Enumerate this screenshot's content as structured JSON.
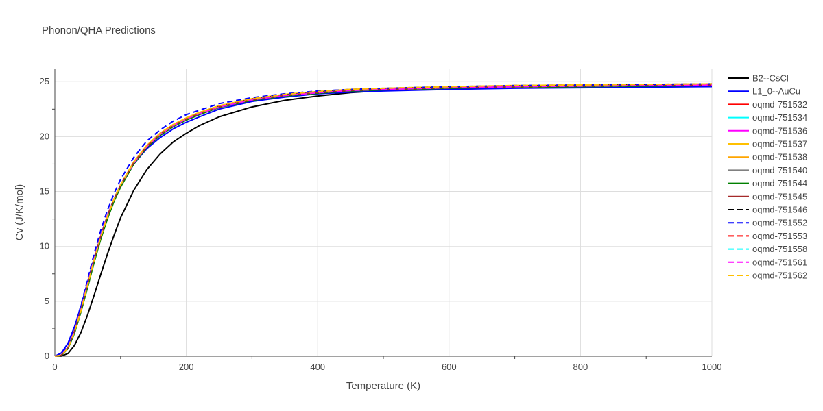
{
  "chart_data": {
    "type": "line",
    "title": "Phonon/QHA Predictions",
    "xlabel": "Temperature (K)",
    "ylabel": "Cv (J/K/mol)",
    "xlim": [
      0,
      1000
    ],
    "ylim": [
      0,
      26.2
    ],
    "x_ticks": [
      0,
      200,
      400,
      600,
      800,
      1000
    ],
    "y_ticks": [
      0,
      5,
      10,
      15,
      20,
      25
    ],
    "grid": true,
    "legend_position": "right",
    "x": [
      0,
      10,
      20,
      30,
      40,
      50,
      60,
      70,
      80,
      90,
      100,
      120,
      140,
      160,
      180,
      200,
      220,
      250,
      300,
      350,
      400,
      450,
      500,
      600,
      700,
      800,
      900,
      1000
    ],
    "series": [
      {
        "name": "B2--CsCl",
        "color": "#000000",
        "dash": "solid",
        "values": [
          0,
          0.02,
          0.25,
          1.0,
          2.2,
          3.8,
          5.6,
          7.5,
          9.3,
          11.0,
          12.6,
          15.1,
          17.0,
          18.4,
          19.5,
          20.3,
          21.0,
          21.8,
          22.7,
          23.3,
          23.7,
          24.0,
          24.2,
          24.4,
          24.55,
          24.6,
          24.65,
          24.7
        ]
      },
      {
        "name": "L1_0--AuCu",
        "color": "#0000ff",
        "dash": "solid",
        "values": [
          0,
          0.3,
          1.2,
          2.7,
          4.6,
          6.8,
          9.0,
          11.0,
          12.8,
          14.3,
          15.5,
          17.5,
          18.9,
          19.9,
          20.7,
          21.3,
          21.8,
          22.5,
          23.2,
          23.6,
          23.9,
          24.05,
          24.15,
          24.3,
          24.4,
          24.45,
          24.5,
          24.55
        ]
      },
      {
        "name": "oqmd-751532",
        "color": "#ff0000",
        "dash": "solid",
        "values": [
          0,
          0.1,
          0.8,
          2.3,
          4.3,
          6.6,
          8.9,
          11.0,
          12.8,
          14.3,
          15.6,
          17.6,
          19.1,
          20.2,
          21.0,
          21.6,
          22.1,
          22.7,
          23.35,
          23.75,
          24.0,
          24.2,
          24.3,
          24.45,
          24.55,
          24.6,
          24.65,
          24.7
        ]
      },
      {
        "name": "oqmd-751534",
        "color": "#00ffff",
        "dash": "solid",
        "values": [
          0,
          0.1,
          0.8,
          2.3,
          4.3,
          6.6,
          8.9,
          11.0,
          12.8,
          14.3,
          15.6,
          17.6,
          19.1,
          20.2,
          21.0,
          21.6,
          22.1,
          22.7,
          23.35,
          23.75,
          24.0,
          24.2,
          24.3,
          24.45,
          24.55,
          24.6,
          24.65,
          24.7
        ]
      },
      {
        "name": "oqmd-751536",
        "color": "#ff00ff",
        "dash": "solid",
        "values": [
          0,
          0.1,
          0.8,
          2.3,
          4.3,
          6.6,
          8.9,
          11.0,
          12.8,
          14.3,
          15.6,
          17.6,
          19.1,
          20.2,
          21.0,
          21.6,
          22.1,
          22.7,
          23.35,
          23.75,
          24.0,
          24.2,
          24.3,
          24.45,
          24.55,
          24.6,
          24.65,
          24.7
        ]
      },
      {
        "name": "oqmd-751537",
        "color": "#ffc000",
        "dash": "solid",
        "values": [
          0,
          0.08,
          0.75,
          2.2,
          4.2,
          6.5,
          8.8,
          10.9,
          12.7,
          14.3,
          15.6,
          17.6,
          19.1,
          20.2,
          21.0,
          21.6,
          22.1,
          22.75,
          23.4,
          23.8,
          24.05,
          24.25,
          24.35,
          24.5,
          24.6,
          24.65,
          24.7,
          24.75
        ]
      },
      {
        "name": "oqmd-751538",
        "color": "#ffa500",
        "dash": "solid",
        "values": [
          0,
          0.08,
          0.75,
          2.2,
          4.2,
          6.5,
          8.8,
          10.9,
          12.7,
          14.3,
          15.6,
          17.7,
          19.2,
          20.3,
          21.1,
          21.7,
          22.2,
          22.8,
          23.45,
          23.85,
          24.1,
          24.3,
          24.4,
          24.55,
          24.65,
          24.7,
          24.75,
          24.8
        ]
      },
      {
        "name": "oqmd-751540",
        "color": "#808080",
        "dash": "solid",
        "values": [
          0,
          0.1,
          0.8,
          2.3,
          4.3,
          6.6,
          8.9,
          11.0,
          12.8,
          14.3,
          15.6,
          17.6,
          19.1,
          20.2,
          21.0,
          21.6,
          22.1,
          22.7,
          23.35,
          23.75,
          24.0,
          24.2,
          24.3,
          24.45,
          24.55,
          24.6,
          24.65,
          24.7
        ]
      },
      {
        "name": "oqmd-751544",
        "color": "#008000",
        "dash": "solid",
        "values": [
          0,
          0.07,
          0.7,
          2.1,
          4.1,
          6.3,
          8.6,
          10.7,
          12.5,
          14.1,
          15.4,
          17.5,
          19.0,
          20.1,
          20.9,
          21.5,
          22.0,
          22.65,
          23.3,
          23.7,
          23.95,
          24.15,
          24.25,
          24.4,
          24.5,
          24.55,
          24.6,
          24.65
        ]
      },
      {
        "name": "oqmd-751545",
        "color": "#a52a2a",
        "dash": "solid",
        "values": [
          0,
          0.1,
          0.8,
          2.3,
          4.3,
          6.6,
          8.9,
          11.0,
          12.8,
          14.3,
          15.6,
          17.6,
          19.1,
          20.2,
          21.0,
          21.6,
          22.1,
          22.7,
          23.35,
          23.75,
          24.0,
          24.2,
          24.3,
          24.45,
          24.55,
          24.6,
          24.65,
          24.7
        ]
      },
      {
        "name": "oqmd-751546",
        "color": "#000000",
        "dash": "dash",
        "values": [
          0,
          0.1,
          0.8,
          2.3,
          4.3,
          6.6,
          8.9,
          11.0,
          12.8,
          14.3,
          15.6,
          17.6,
          19.1,
          20.2,
          21.0,
          21.6,
          22.1,
          22.75,
          23.4,
          23.8,
          24.05,
          24.25,
          24.35,
          24.5,
          24.6,
          24.65,
          24.7,
          24.75
        ]
      },
      {
        "name": "oqmd-751552",
        "color": "#0000ff",
        "dash": "dash",
        "values": [
          0,
          0.15,
          1.0,
          2.6,
          4.7,
          7.0,
          9.4,
          11.5,
          13.3,
          14.8,
          16.1,
          18.1,
          19.6,
          20.6,
          21.4,
          22.0,
          22.4,
          23.0,
          23.55,
          23.9,
          24.15,
          24.3,
          24.4,
          24.55,
          24.65,
          24.7,
          24.75,
          24.8
        ]
      },
      {
        "name": "oqmd-751553",
        "color": "#ff0000",
        "dash": "dash",
        "values": [
          0,
          0.1,
          0.8,
          2.3,
          4.3,
          6.6,
          8.9,
          11.0,
          12.8,
          14.3,
          15.6,
          17.6,
          19.1,
          20.2,
          21.0,
          21.6,
          22.1,
          22.7,
          23.35,
          23.75,
          24.0,
          24.2,
          24.3,
          24.45,
          24.55,
          24.6,
          24.65,
          24.7
        ]
      },
      {
        "name": "oqmd-751558",
        "color": "#00ffff",
        "dash": "dash",
        "values": [
          0,
          0.1,
          0.8,
          2.3,
          4.3,
          6.6,
          8.9,
          11.0,
          12.8,
          14.3,
          15.6,
          17.6,
          19.1,
          20.2,
          21.0,
          21.6,
          22.1,
          22.7,
          23.35,
          23.75,
          24.0,
          24.2,
          24.3,
          24.45,
          24.55,
          24.6,
          24.65,
          24.7
        ]
      },
      {
        "name": "oqmd-751561",
        "color": "#ff00ff",
        "dash": "dash",
        "values": [
          0,
          0.1,
          0.8,
          2.3,
          4.3,
          6.6,
          8.9,
          11.0,
          12.8,
          14.3,
          15.6,
          17.6,
          19.1,
          20.2,
          21.0,
          21.6,
          22.1,
          22.7,
          23.35,
          23.75,
          24.0,
          24.2,
          24.3,
          24.45,
          24.55,
          24.6,
          24.65,
          24.7
        ]
      },
      {
        "name": "oqmd-751562",
        "color": "#ffc000",
        "dash": "dash",
        "values": [
          0,
          0.08,
          0.75,
          2.2,
          4.2,
          6.5,
          8.8,
          10.9,
          12.7,
          14.3,
          15.6,
          17.7,
          19.2,
          20.3,
          21.1,
          21.7,
          22.2,
          22.8,
          23.45,
          23.85,
          24.1,
          24.3,
          24.4,
          24.55,
          24.65,
          24.7,
          24.75,
          24.8
        ]
      }
    ]
  }
}
